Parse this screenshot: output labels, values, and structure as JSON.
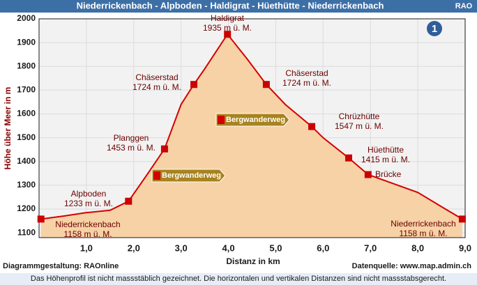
{
  "header": {
    "title": "Niederrickenbach - Alpboden - Haldigrat - Hüethütte - Niederrickenbach",
    "badge": "RAO"
  },
  "chart_data": {
    "type": "area",
    "xlabel": "Distanz in km",
    "ylabel": "Höhe über Meer in m",
    "xlim": [
      0,
      9
    ],
    "ylim": [
      1080,
      2000
    ],
    "xticks": [
      {
        "value": 1,
        "label": "1,0"
      },
      {
        "value": 2,
        "label": "2,0"
      },
      {
        "value": 3,
        "label": "3,0"
      },
      {
        "value": 4,
        "label": "4,0"
      },
      {
        "value": 5,
        "label": "5,0"
      },
      {
        "value": 6,
        "label": "6,0"
      },
      {
        "value": 7,
        "label": "7,0"
      },
      {
        "value": 8,
        "label": "8,0"
      },
      {
        "value": 9,
        "label": "9,0"
      }
    ],
    "yticks": [
      1100,
      1200,
      1300,
      1400,
      1500,
      1600,
      1700,
      1800,
      1900,
      2000
    ],
    "grid": true,
    "series": [
      {
        "color": "#d40000",
        "fill": "#f7d2a6",
        "x": [
          0.04,
          0.5,
          1.0,
          1.5,
          1.89,
          2.3,
          2.65,
          3.0,
          3.27,
          3.5,
          3.98,
          4.4,
          4.8,
          5.2,
          5.76,
          6.0,
          6.54,
          6.95,
          7.3,
          8.0,
          8.5,
          8.94
        ],
        "values": [
          1158,
          1170,
          1185,
          1195,
          1233,
          1350,
          1453,
          1640,
          1724,
          1790,
          1935,
          1830,
          1724,
          1640,
          1547,
          1500,
          1415,
          1345,
          1320,
          1270,
          1210,
          1158
        ]
      }
    ],
    "waypoints": {
      "color": "#cc0000",
      "names": [
        "Niederrickenbach",
        "Alpboden",
        "Planggen",
        "Chäserstad",
        "Haldigrat",
        "Chäserstad",
        "Chrüzhütte",
        "Hüethütte",
        "Brücke",
        "Niederrickenbach"
      ],
      "x": [
        0.04,
        1.89,
        2.65,
        3.27,
        3.98,
        4.8,
        5.76,
        6.54,
        6.95,
        8.94
      ],
      "values": [
        1158,
        1233,
        1453,
        1724,
        1935,
        1724,
        1547,
        1415,
        1345,
        1158
      ],
      "value_labels": [
        "1158 m ü. M.",
        "1233 m ü. M.",
        "1453 m ü. M.",
        "1724 m ü. M.",
        "1935 m ü. M.",
        "1724 m ü. M.",
        "1547 m ü. M.",
        "1415 m ü. M.",
        null,
        "1158 m ü. M."
      ]
    },
    "signs": [
      "Bergwanderweg",
      "Bergwanderweg"
    ],
    "route_number": "1"
  },
  "footer": {
    "left": "Diagrammgestaltung: RAOnline",
    "right": "Datenquelle: www.map.admin.ch",
    "note": "Das Höhenprofil ist nicht massstäblich gezeichnet. Die horizontalen und vertikalen Distanzen sind nicht massstabsgerecht."
  }
}
